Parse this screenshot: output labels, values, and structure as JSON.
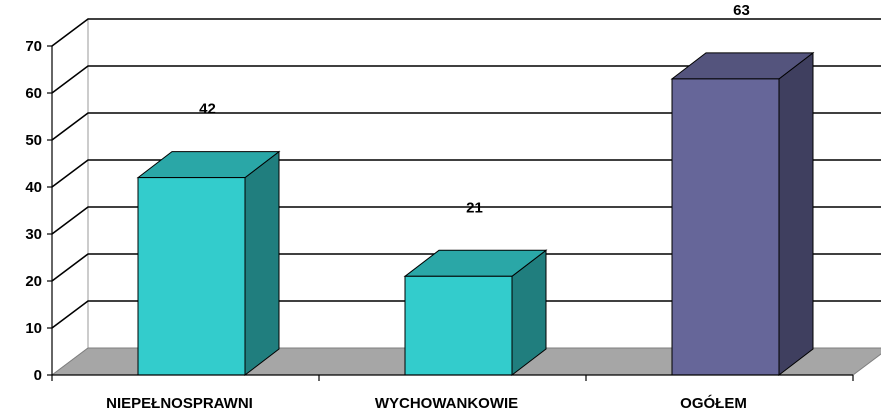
{
  "chart_data": {
    "type": "bar",
    "style": "3d-column",
    "categories": [
      "NIEPEŁNOSPRAWNI",
      "WYCHOWANKOWIE",
      "OGÓŁEM"
    ],
    "values": [
      42,
      21,
      63
    ],
    "data_labels": [
      "42",
      "21",
      "63"
    ],
    "yticks": [
      "0",
      "10",
      "20",
      "30",
      "40",
      "50",
      "60",
      "70"
    ],
    "ylim": [
      0,
      70
    ],
    "grid": true,
    "legend": "none",
    "title": "",
    "xlabel": "",
    "ylabel": "",
    "colors": {
      "series": [
        "#33cccc",
        "#33cccc",
        "#666699"
      ],
      "floor": "#a6a6a6",
      "grid": "#000000"
    }
  }
}
